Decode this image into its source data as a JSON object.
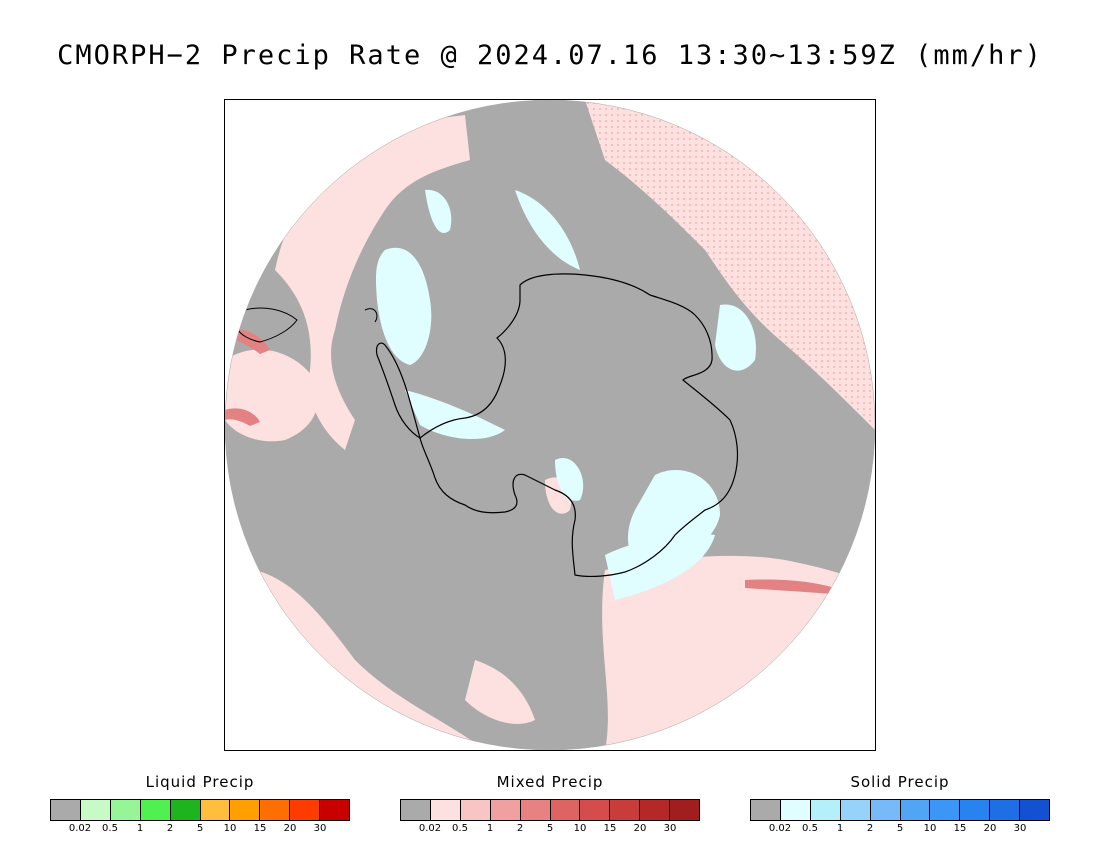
{
  "title": "CMORPH−2 Precip Rate @ 2024.07.16 13:30~13:59Z (mm/hr)",
  "map": {
    "projection": "south-polar-stereographic",
    "background_color": "#aaaaaa",
    "colors": {
      "no_precip": "#aaaaaa",
      "mixed_light": "#fde0e0",
      "mixed_moderate": "#f7bdbd",
      "mixed_heavy": "#e28282",
      "solid_light": "#e0feff",
      "coastline": "#000000"
    }
  },
  "legends": [
    {
      "title": "Liquid Precip",
      "colors": [
        "#aaaaaa",
        "#c8fac8",
        "#96f596",
        "#50f050",
        "#1eb41e",
        "#ffbe3c",
        "#ffa000",
        "#ff6e00",
        "#ff3c00",
        "#c80000"
      ],
      "ticks": [
        "0.02",
        "0.5",
        "1",
        "2",
        "5",
        "10",
        "15",
        "20",
        "30"
      ]
    },
    {
      "title": "Mixed Precip",
      "colors": [
        "#aaaaaa",
        "#fde0e0",
        "#f9c4c4",
        "#f0a0a0",
        "#e88282",
        "#de6464",
        "#d44c4c",
        "#c83c3c",
        "#b42828",
        "#a01e1e"
      ],
      "ticks": [
        "0.02",
        "0.5",
        "1",
        "2",
        "5",
        "10",
        "15",
        "20",
        "30"
      ]
    },
    {
      "title": "Solid Precip",
      "colors": [
        "#aaaaaa",
        "#e0feff",
        "#b4f0fa",
        "#96d2fa",
        "#78b9fa",
        "#50a5f5",
        "#3c96f5",
        "#2882f0",
        "#1e6ee6",
        "#1450d2"
      ],
      "ticks": [
        "0.02",
        "0.5",
        "1",
        "2",
        "5",
        "10",
        "15",
        "20",
        "30"
      ]
    }
  ]
}
